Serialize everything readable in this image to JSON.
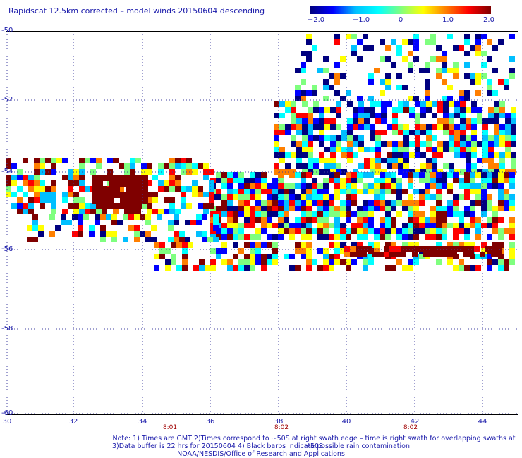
{
  "title": "Rapidscat 12.5km corrected – model winds 20150604 descending",
  "colorbar": {
    "labels": [
      "−2.0",
      "−1.0",
      "0",
      "1.0",
      "2.0"
    ],
    "range": [
      -2.0,
      2.0
    ],
    "colors": [
      "#00007f",
      "#0000ff",
      "#00bfff",
      "#00ffff",
      "#7fff7f",
      "#ffff00",
      "#ff7f00",
      "#ff0000",
      "#7f0000"
    ]
  },
  "map": {
    "x_ticks": [
      "30",
      "32",
      "34",
      "36",
      "38",
      "40",
      "42",
      "44"
    ],
    "y_ticks": [
      "-50",
      "-52",
      "-54",
      "-56",
      "-58",
      "-60"
    ],
    "lon_range": [
      30,
      45
    ],
    "lat_range": [
      -50,
      -60
    ],
    "grid": "dotted"
  },
  "times": [
    "8:01",
    "8:02",
    "8:02"
  ],
  "notes": {
    "line1": "Note: 1) Times are GMT 2)Times correspond to ~50S at right swath edge – time is right swath for overlapping swaths at ~50S",
    "line2": "3)Data buffer is 22 hrs for 20150604 4) Black barbs indicate possible rain contamination",
    "line3": "NOAA/NESDIS/Office of Research and Applications"
  }
}
